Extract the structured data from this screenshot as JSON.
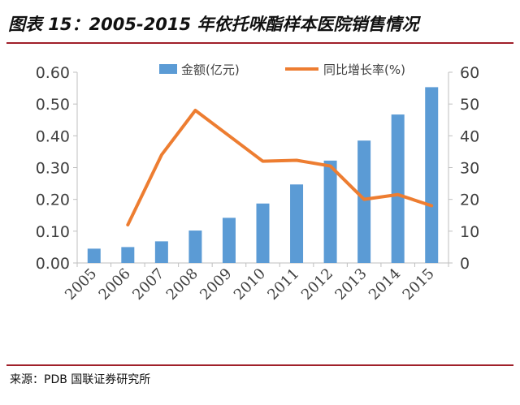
{
  "title": "图表 15：2005-2015 年依托咪酯样本医院销售情况",
  "source": "来源：PDB 国联证券研究所",
  "chart_data": {
    "type": "bar+line",
    "categories": [
      "2005",
      "2006",
      "2007",
      "2008",
      "2009",
      "2010",
      "2011",
      "2012",
      "2013",
      "2014",
      "2015"
    ],
    "series": [
      {
        "name": "金额(亿元)",
        "type": "bar",
        "axis": "left",
        "color": "#5b9bd5",
        "values": [
          0.045,
          0.05,
          0.068,
          0.102,
          0.142,
          0.187,
          0.247,
          0.322,
          0.385,
          0.467,
          0.553
        ]
      },
      {
        "name": "同比增长率(%)",
        "type": "line",
        "axis": "right",
        "color": "#ed7d31",
        "values": [
          null,
          12,
          34,
          48,
          40,
          32,
          32.3,
          30.5,
          20,
          21.5,
          18
        ]
      }
    ],
    "y_left": {
      "min": 0,
      "max": 0.6,
      "ticks": [
        "0.00",
        "0.10",
        "0.20",
        "0.30",
        "0.40",
        "0.50",
        "0.60"
      ]
    },
    "y_right": {
      "min": 0,
      "max": 60,
      "ticks": [
        "0",
        "10",
        "20",
        "30",
        "40",
        "50",
        "60"
      ]
    },
    "legend_position": "top",
    "grid": false
  }
}
